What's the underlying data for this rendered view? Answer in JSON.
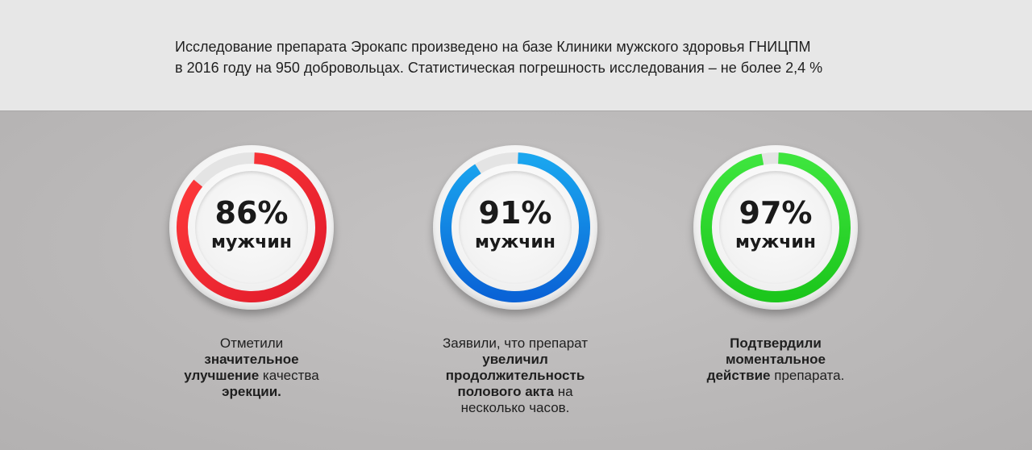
{
  "intro": {
    "line1": "Исследование препарата Эрокапс произведено на базе Клиники мужского здоровья ГНИЦПМ",
    "line2": "в 2016 году на 950 добровольцах. Статистическая погрешность исследования – не более 2,4 %"
  },
  "stats": [
    {
      "percent": "86%",
      "value": 86,
      "unit": "мужчин",
      "color_start": "#ff3b3b",
      "color_end": "#e0192a",
      "caption": {
        "l1_normal": "Отметили",
        "l2_bold": "значительное",
        "l3_bold": "улучшение",
        "l3_normal": " качества",
        "l4_bold": "эрекции."
      }
    },
    {
      "percent": "91%",
      "value": 91,
      "unit": "мужчин",
      "color_start": "#1aa6ef",
      "color_end": "#0a63d6",
      "caption": {
        "l1_normal": "Заявили, что препарат",
        "l2_bold": "увеличил",
        "l3_bold": "продолжительность",
        "l4_bold": "полового акта",
        "l4_normal": " на",
        "l5_normal": "несколько часов."
      }
    },
    {
      "percent": "97%",
      "value": 97,
      "unit": "мужчин",
      "color_start": "#3ee53e",
      "color_end": "#1cc61c",
      "caption": {
        "l1_bold": "Подтвердили",
        "l2_bold": "моментальное",
        "l3_bold": "действие",
        "l3_normal": " препарата."
      }
    }
  ]
}
